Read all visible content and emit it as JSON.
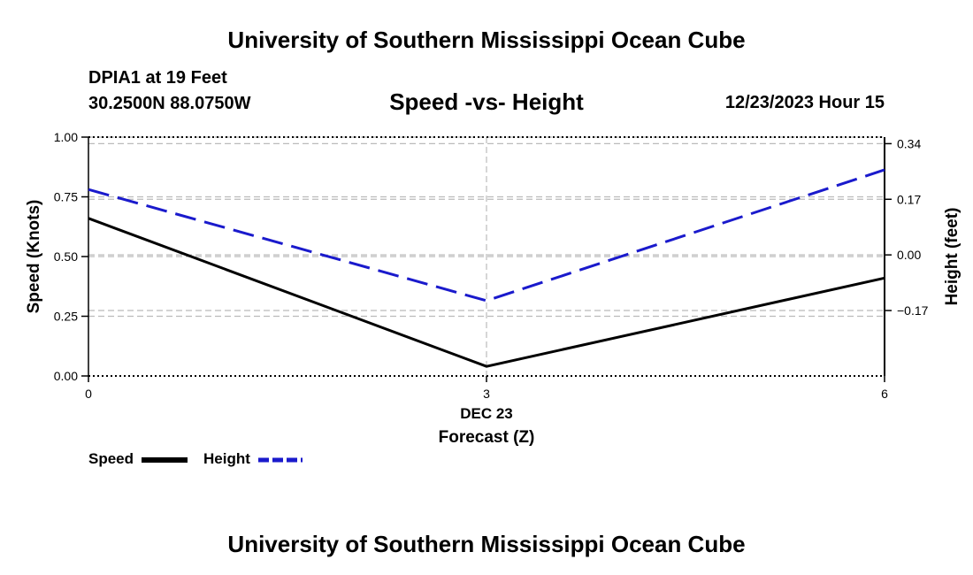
{
  "header": {
    "title": "University of Southern Mississippi Ocean Cube",
    "station": "DPIA1 at 19 Feet",
    "coords": "30.2500N  88.0750W",
    "chart_title": "Speed -vs- Height",
    "datetime": "12/23/2023 Hour 15"
  },
  "footer": {
    "title": "University of Southern Mississippi Ocean Cube"
  },
  "legend": {
    "speed_label": "Speed",
    "height_label": "Height"
  },
  "colors": {
    "speed": "#000000",
    "height": "#1a1acc",
    "grid": "#bbbbbb"
  },
  "chart_data": {
    "type": "line",
    "title": "Speed -vs- Height",
    "xlabel": "Forecast (Z)",
    "xlabel_date": "DEC 23",
    "ylabel": "Speed (Knots)",
    "y2label": "Height (feet)",
    "x": [
      0,
      3,
      6
    ],
    "xlim": [
      0,
      6
    ],
    "xticks": [
      0,
      3,
      6
    ],
    "xtick_labels": [
      "0",
      "3",
      "6"
    ],
    "ylim": [
      0,
      1
    ],
    "yticks": [
      0,
      0.25,
      0.5,
      0.75,
      1.0
    ],
    "ytick_labels": [
      "0.00",
      "0.25",
      "0.50",
      "0.75",
      "1.00"
    ],
    "y2lim": [
      -0.37,
      0.36
    ],
    "y2ticks": [
      -0.17,
      0.0,
      0.17,
      0.34
    ],
    "y2tick_labels": [
      "-0.17",
      "0.00",
      "0.17",
      "0.34"
    ],
    "series": [
      {
        "name": "Speed",
        "axis": "left",
        "style": "solid",
        "values": [
          0.66,
          0.04,
          0.41
        ]
      },
      {
        "name": "Height",
        "axis": "right",
        "style": "dashed",
        "values": [
          0.2,
          -0.14,
          0.26
        ]
      }
    ]
  }
}
